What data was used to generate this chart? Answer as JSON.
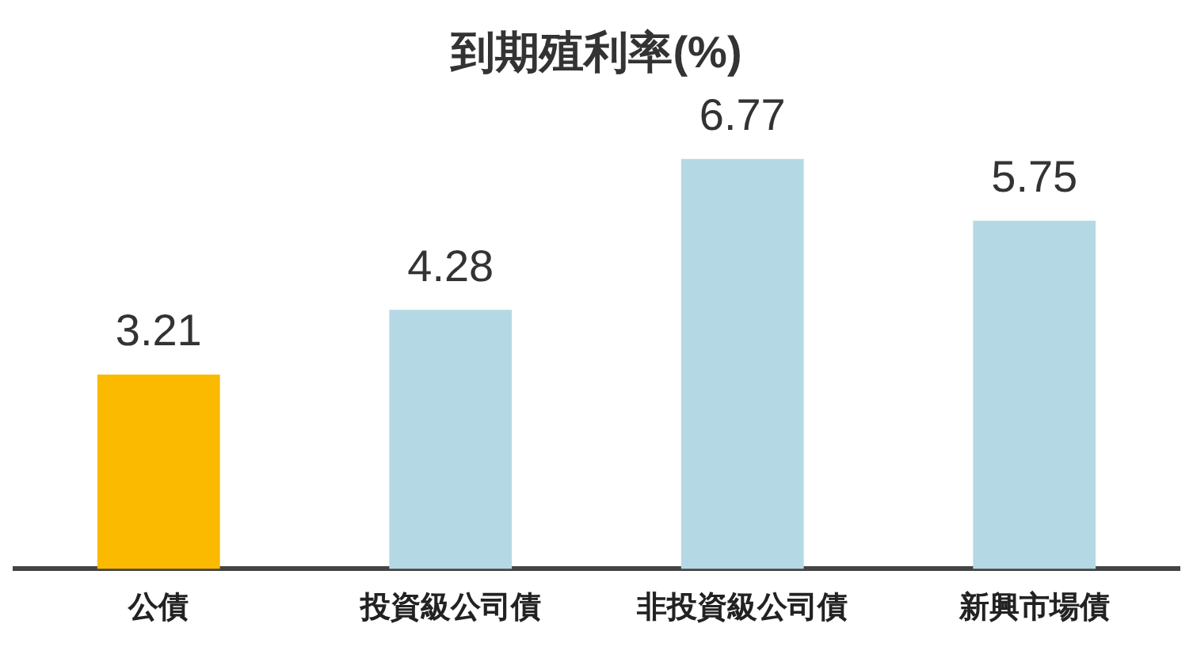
{
  "chart_data": {
    "type": "bar",
    "title": "到期殖利率(%)",
    "categories": [
      "公債",
      "投資級公司債",
      "非投資級公司債",
      "新興市場債"
    ],
    "values": [
      3.21,
      4.28,
      6.77,
      5.75
    ],
    "colors": [
      "#fbb900",
      "#b5d9e4",
      "#b5d9e4",
      "#b5d9e4"
    ],
    "data_labels": true,
    "grid": false,
    "legend": false
  }
}
